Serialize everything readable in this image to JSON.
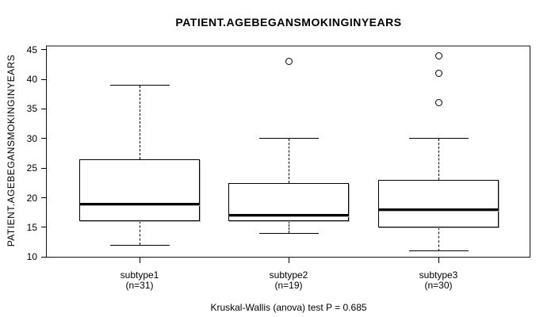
{
  "chart_data": {
    "type": "boxplot",
    "title": "PATIENT.AGEBEGANSMOKINGINYEARS",
    "ylabel": "PATIENT.AGEBEGANSMOKINGINYEARS",
    "xlabel": "",
    "annotation": "Kruskal-Wallis (anova) test P = 0.685",
    "yticks": [
      10,
      15,
      20,
      25,
      30,
      35,
      40,
      45
    ],
    "ylim": [
      9.9,
      45.5
    ],
    "grid": false,
    "legend": "none",
    "groups": [
      {
        "label": "subtype1",
        "sublabel": "(n=31)",
        "n": 31,
        "whisker_low": 12,
        "q1": 16,
        "median": 19,
        "q3": 26.5,
        "whisker_high": 39,
        "outliers": []
      },
      {
        "label": "subtype2",
        "sublabel": "(n=19)",
        "n": 19,
        "whisker_low": 14,
        "q1": 16,
        "median": 17,
        "q3": 22.5,
        "whisker_high": 30,
        "outliers": [
          43
        ]
      },
      {
        "label": "subtype3",
        "sublabel": "(n=30)",
        "n": 30,
        "whisker_low": 11,
        "q1": 15,
        "median": 18,
        "q3": 23,
        "whisker_high": 30,
        "outliers": [
          36,
          41,
          44
        ]
      }
    ]
  },
  "colors": {
    "line": "#000000",
    "frame_top": "#8a8a8a",
    "box_fill": "#ffffff",
    "background": "#ffffff"
  }
}
